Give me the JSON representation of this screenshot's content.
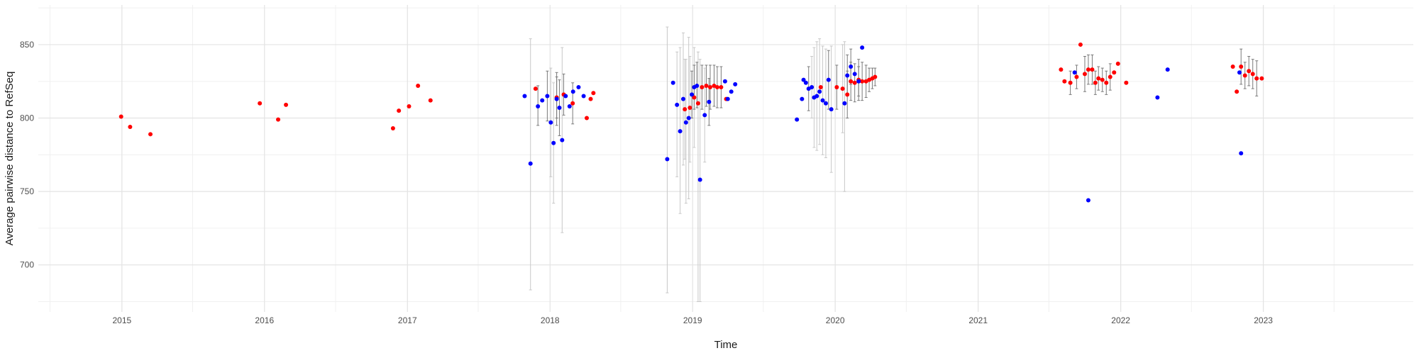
{
  "chart_data": {
    "type": "scatter",
    "title": "",
    "xlabel": "Time",
    "ylabel": "Average pairwise distance to RefSeq",
    "x_axis_type": "date",
    "xlim": [
      "2014-06-01",
      "2024-01-20"
    ],
    "ylim": [
      668,
      877
    ],
    "x_ticks": [
      "2015",
      "2016",
      "2017",
      "2018",
      "2019",
      "2020",
      "2021",
      "2022",
      "2023"
    ],
    "x_tick_dates": [
      "2015-01-01",
      "2016-01-01",
      "2017-01-01",
      "2018-01-01",
      "2019-01-01",
      "2020-01-01",
      "2021-01-01",
      "2022-01-01",
      "2023-01-01"
    ],
    "x_minor_dates": [
      "2014-07-01",
      "2015-07-01",
      "2016-07-01",
      "2017-07-01",
      "2018-07-01",
      "2019-07-01",
      "2020-07-01",
      "2021-07-01",
      "2022-07-01",
      "2023-07-01"
    ],
    "y_ticks": [
      700,
      750,
      800,
      850
    ],
    "y_minor": [
      675,
      725,
      775,
      825,
      875
    ],
    "grid": true,
    "legend": "none",
    "series": [
      {
        "color": "#ff0000",
        "points": [
          {
            "x": "2014-12-30",
            "y": 801
          },
          {
            "x": "2015-01-22",
            "y": 794
          },
          {
            "x": "2015-03-15",
            "y": 789
          },
          {
            "x": "2015-12-20",
            "y": 810
          },
          {
            "x": "2016-02-05",
            "y": 799
          },
          {
            "x": "2016-02-25",
            "y": 809
          },
          {
            "x": "2016-11-25",
            "y": 793
          },
          {
            "x": "2016-12-10",
            "y": 805
          },
          {
            "x": "2017-01-05",
            "y": 808
          },
          {
            "x": "2017-01-28",
            "y": 822
          },
          {
            "x": "2017-03-01",
            "y": 812
          },
          {
            "x": "2017-11-25",
            "y": 820
          },
          {
            "x": "2018-01-18",
            "y": 814,
            "lo": 800,
            "hi": 828
          },
          {
            "x": "2018-02-05",
            "y": 816,
            "lo": 802,
            "hi": 830
          },
          {
            "x": "2018-02-28",
            "y": 810,
            "lo": 796,
            "hi": 824
          },
          {
            "x": "2018-04-05",
            "y": 800
          },
          {
            "x": "2018-04-15",
            "y": 813
          },
          {
            "x": "2018-04-22",
            "y": 817
          },
          {
            "x": "2018-12-12",
            "y": 806,
            "lo": 772,
            "hi": 840
          },
          {
            "x": "2018-12-25",
            "y": 807,
            "lo": 770,
            "hi": 842
          },
          {
            "x": "2019-01-05",
            "y": 814,
            "lo": 780,
            "hi": 848
          },
          {
            "x": "2019-01-15",
            "y": 810,
            "lo": 675,
            "hi": 845
          },
          {
            "x": "2019-01-25",
            "y": 821,
            "lo": 806,
            "hi": 836
          },
          {
            "x": "2019-02-05",
            "y": 822,
            "lo": 808,
            "hi": 836
          },
          {
            "x": "2019-02-15",
            "y": 821,
            "lo": 806,
            "hi": 836
          },
          {
            "x": "2019-02-25",
            "y": 822,
            "lo": 808,
            "hi": 836
          },
          {
            "x": "2019-03-05",
            "y": 821,
            "lo": 807,
            "hi": 835
          },
          {
            "x": "2019-03-15",
            "y": 821,
            "lo": 807,
            "hi": 835
          },
          {
            "x": "2019-03-28",
            "y": 813
          },
          {
            "x": "2019-11-25",
            "y": 821
          },
          {
            "x": "2020-01-05",
            "y": 821,
            "lo": 806,
            "hi": 836
          },
          {
            "x": "2020-01-20",
            "y": 820,
            "lo": 790,
            "hi": 850
          },
          {
            "x": "2020-02-01",
            "y": 816,
            "lo": 800,
            "hi": 832
          },
          {
            "x": "2020-02-10",
            "y": 825,
            "lo": 812,
            "hi": 838
          },
          {
            "x": "2020-02-20",
            "y": 824,
            "lo": 811,
            "hi": 837
          },
          {
            "x": "2020-03-01",
            "y": 826,
            "lo": 812,
            "hi": 840
          },
          {
            "x": "2020-03-10",
            "y": 825,
            "lo": 812,
            "hi": 838
          },
          {
            "x": "2020-03-20",
            "y": 825,
            "lo": 814,
            "hi": 836
          },
          {
            "x": "2020-03-28",
            "y": 826,
            "lo": 818,
            "hi": 834
          },
          {
            "x": "2020-04-05",
            "y": 827,
            "lo": 820,
            "hi": 834
          },
          {
            "x": "2020-04-12",
            "y": 828,
            "lo": 822,
            "hi": 834
          },
          {
            "x": "2021-08-01",
            "y": 833
          },
          {
            "x": "2021-08-10",
            "y": 825
          },
          {
            "x": "2021-08-25",
            "y": 824,
            "lo": 816,
            "hi": 832
          },
          {
            "x": "2021-09-10",
            "y": 828,
            "lo": 820,
            "hi": 836
          },
          {
            "x": "2021-09-20",
            "y": 850
          },
          {
            "x": "2021-10-01",
            "y": 830,
            "lo": 818,
            "hi": 842
          },
          {
            "x": "2021-10-10",
            "y": 833,
            "lo": 823,
            "hi": 843
          },
          {
            "x": "2021-10-20",
            "y": 833,
            "lo": 823,
            "hi": 843
          },
          {
            "x": "2021-10-28",
            "y": 824,
            "lo": 816,
            "hi": 832
          },
          {
            "x": "2021-11-05",
            "y": 827,
            "lo": 819,
            "hi": 835
          },
          {
            "x": "2021-11-15",
            "y": 826,
            "lo": 818,
            "hi": 834
          },
          {
            "x": "2021-11-25",
            "y": 824,
            "lo": 816,
            "hi": 832
          },
          {
            "x": "2021-12-05",
            "y": 828,
            "lo": 819,
            "hi": 837
          },
          {
            "x": "2021-12-15",
            "y": 831
          },
          {
            "x": "2021-12-25",
            "y": 837
          },
          {
            "x": "2022-01-15",
            "y": 824
          },
          {
            "x": "2022-10-15",
            "y": 835
          },
          {
            "x": "2022-10-25",
            "y": 818
          },
          {
            "x": "2022-11-05",
            "y": 835,
            "lo": 823,
            "hi": 847
          },
          {
            "x": "2022-11-15",
            "y": 829,
            "lo": 820,
            "hi": 838
          },
          {
            "x": "2022-11-25",
            "y": 832,
            "lo": 822,
            "hi": 842
          },
          {
            "x": "2022-12-05",
            "y": 830,
            "lo": 820,
            "hi": 840
          },
          {
            "x": "2022-12-15",
            "y": 827,
            "lo": 815,
            "hi": 839
          },
          {
            "x": "2022-12-28",
            "y": 827
          }
        ]
      },
      {
        "color": "#0000ff",
        "points": [
          {
            "x": "2017-10-28",
            "y": 815
          },
          {
            "x": "2017-11-12",
            "y": 769,
            "lo": 683,
            "hi": 854
          },
          {
            "x": "2017-12-01",
            "y": 808,
            "lo": 795,
            "hi": 822
          },
          {
            "x": "2017-12-12",
            "y": 812
          },
          {
            "x": "2017-12-25",
            "y": 815,
            "lo": 798,
            "hi": 832
          },
          {
            "x": "2018-01-03",
            "y": 797,
            "lo": 760,
            "hi": 834
          },
          {
            "x": "2018-01-10",
            "y": 783,
            "lo": 742,
            "hi": 824
          },
          {
            "x": "2018-01-18",
            "y": 813,
            "lo": 795,
            "hi": 831
          },
          {
            "x": "2018-01-25",
            "y": 807,
            "lo": 788,
            "hi": 826
          },
          {
            "x": "2018-02-01",
            "y": 785,
            "lo": 722,
            "hi": 848
          },
          {
            "x": "2018-02-10",
            "y": 815
          },
          {
            "x": "2018-02-20",
            "y": 808
          },
          {
            "x": "2018-03-01",
            "y": 818
          },
          {
            "x": "2018-03-15",
            "y": 821
          },
          {
            "x": "2018-03-28",
            "y": 815
          },
          {
            "x": "2018-10-28",
            "y": 772,
            "lo": 681,
            "hi": 862
          },
          {
            "x": "2018-11-12",
            "y": 824
          },
          {
            "x": "2018-11-22",
            "y": 809,
            "lo": 760,
            "hi": 845
          },
          {
            "x": "2018-11-30",
            "y": 791,
            "lo": 735,
            "hi": 848
          },
          {
            "x": "2018-12-08",
            "y": 813,
            "lo": 768,
            "hi": 858
          },
          {
            "x": "2018-12-15",
            "y": 797,
            "lo": 742,
            "hi": 840
          },
          {
            "x": "2018-12-22",
            "y": 800,
            "lo": 745,
            "hi": 855
          },
          {
            "x": "2018-12-30",
            "y": 816,
            "lo": 800,
            "hi": 832
          },
          {
            "x": "2019-01-05",
            "y": 821,
            "lo": 806,
            "hi": 836
          },
          {
            "x": "2019-01-12",
            "y": 822,
            "lo": 807,
            "hi": 838
          },
          {
            "x": "2019-01-20",
            "y": 758,
            "lo": 675,
            "hi": 840
          },
          {
            "x": "2019-02-01",
            "y": 802,
            "lo": 770,
            "hi": 834
          },
          {
            "x": "2019-02-12",
            "y": 811,
            "lo": 795,
            "hi": 827
          },
          {
            "x": "2019-03-25",
            "y": 825
          },
          {
            "x": "2019-04-01",
            "y": 813
          },
          {
            "x": "2019-04-10",
            "y": 818
          },
          {
            "x": "2019-04-20",
            "y": 823
          },
          {
            "x": "2019-09-25",
            "y": 799
          },
          {
            "x": "2019-10-08",
            "y": 813
          },
          {
            "x": "2019-10-12",
            "y": 826
          },
          {
            "x": "2019-10-18",
            "y": 824
          },
          {
            "x": "2019-10-25",
            "y": 820,
            "lo": 805,
            "hi": 835
          },
          {
            "x": "2019-11-02",
            "y": 821,
            "lo": 800,
            "hi": 842
          },
          {
            "x": "2019-11-08",
            "y": 814,
            "lo": 780,
            "hi": 848
          },
          {
            "x": "2019-11-15",
            "y": 815,
            "lo": 778,
            "hi": 852
          },
          {
            "x": "2019-11-22",
            "y": 818,
            "lo": 782,
            "hi": 854
          },
          {
            "x": "2019-11-30",
            "y": 812,
            "lo": 775,
            "hi": 849
          },
          {
            "x": "2019-12-08",
            "y": 810,
            "lo": 773,
            "hi": 847
          },
          {
            "x": "2019-12-15",
            "y": 826,
            "lo": 806,
            "hi": 846
          },
          {
            "x": "2019-12-22",
            "y": 806,
            "lo": 763,
            "hi": 849
          },
          {
            "x": "2020-01-25",
            "y": 810,
            "lo": 750,
            "hi": 852
          },
          {
            "x": "2020-02-01",
            "y": 829,
            "lo": 815,
            "hi": 843
          },
          {
            "x": "2020-02-10",
            "y": 835,
            "lo": 823,
            "hi": 847
          },
          {
            "x": "2020-02-20",
            "y": 830
          },
          {
            "x": "2020-03-01",
            "y": 825,
            "lo": 815,
            "hi": 835
          },
          {
            "x": "2020-03-10",
            "y": 848
          },
          {
            "x": "2021-09-05",
            "y": 831
          },
          {
            "x": "2021-10-10",
            "y": 744
          },
          {
            "x": "2022-04-05",
            "y": 814
          },
          {
            "x": "2022-05-01",
            "y": 833
          },
          {
            "x": "2022-11-01",
            "y": 831
          },
          {
            "x": "2022-11-05",
            "y": 776
          }
        ]
      }
    ]
  }
}
